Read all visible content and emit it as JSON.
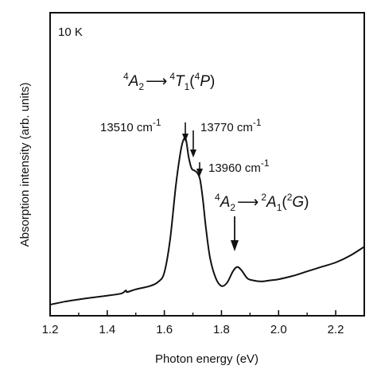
{
  "chart_data": {
    "type": "line",
    "xlabel": "Photon energy (eV)",
    "ylabel": "Absorption intensity (arb. units)",
    "xlim": [
      1.2,
      2.3
    ],
    "ylim": [
      0,
      1
    ],
    "xticks": [
      1.2,
      1.4,
      1.6,
      1.8,
      2.0,
      2.2
    ],
    "xtick_labels": [
      "1.2",
      "1.4",
      "1.6",
      "1.8",
      "2.0",
      "2.2"
    ],
    "y_ticks_labeled": false,
    "grid": false,
    "legend": "none",
    "series": [
      {
        "x": [
          1.2,
          1.25,
          1.3,
          1.35,
          1.4,
          1.45,
          1.465,
          1.47,
          1.5,
          1.55,
          1.58,
          1.6,
          1.62,
          1.64,
          1.655,
          1.665,
          1.675,
          1.685,
          1.695,
          1.705,
          1.715,
          1.725,
          1.735,
          1.745,
          1.76,
          1.78,
          1.8,
          1.82,
          1.84,
          1.855,
          1.87,
          1.89,
          1.91,
          1.94,
          1.97,
          2.0,
          2.05,
          2.1,
          2.15,
          2.2,
          2.25,
          2.3
        ],
        "y": [
          0.032,
          0.045,
          0.055,
          0.064,
          0.072,
          0.082,
          0.095,
          0.088,
          0.1,
          0.115,
          0.135,
          0.175,
          0.32,
          0.56,
          0.7,
          0.76,
          0.77,
          0.69,
          0.64,
          0.63,
          0.62,
          0.59,
          0.5,
          0.38,
          0.24,
          0.15,
          0.115,
          0.13,
          0.18,
          0.2,
          0.185,
          0.15,
          0.14,
          0.135,
          0.14,
          0.145,
          0.16,
          0.18,
          0.2,
          0.22,
          0.25,
          0.29
        ]
      }
    ],
    "annotations": {
      "temperature": "10 K",
      "peak1": "13510 cm",
      "peak2": "13770 cm",
      "peak3": "13960 cm",
      "cm_exp": "-1",
      "t1_left_sup": "4",
      "t1_A": "A",
      "t1_A_sub": "2",
      "t1_arrow": "⟶",
      "t1_T_sup": "4",
      "t1_T": "T",
      "t1_T_sub": "1",
      "t1_open": "(",
      "t1_P_sup": "4",
      "t1_P": "P",
      "t1_close": ")",
      "t2_left_sup": "4",
      "t2_A": "A",
      "t2_A_sub": "2",
      "t2_arrow": "⟶",
      "t2_A1_sup": "2",
      "t2_A1": "A",
      "t2_A1_sub": "1",
      "t2_open": "(",
      "t2_G_sup": "2",
      "t2_G": "G",
      "t2_close": ")"
    }
  }
}
